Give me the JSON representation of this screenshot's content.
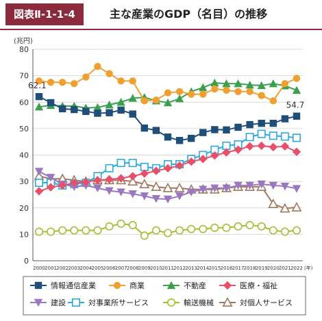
{
  "header": {
    "figure_number": "図表Ⅱ-1-1-4",
    "title": "主な産業のGDP（名目）の推移"
  },
  "colors": {
    "header_accent": "#8a2a3c"
  },
  "chart_data": {
    "type": "line",
    "yunit": "(兆円)",
    "xunit": "(年)",
    "ylim": [
      0,
      80
    ],
    "yticks": [
      0,
      10,
      20,
      30,
      40,
      50,
      60,
      70,
      80
    ],
    "x": [
      "2000",
      "2001",
      "2002",
      "2003",
      "2004",
      "2005",
      "2006",
      "2007",
      "2008",
      "2009",
      "2010",
      "2011",
      "2012",
      "2013",
      "2014",
      "2015",
      "2016",
      "2017",
      "2018",
      "2019",
      "2020",
      "2021",
      "2022"
    ],
    "grid": true,
    "legend_position": "bottom",
    "annotations": [
      {
        "text": "62.1",
        "series": 0,
        "index": 0
      },
      {
        "text": "54.7",
        "series": 0,
        "index": 22
      }
    ],
    "series": [
      {
        "name": "情報通信産業",
        "color": "#1f4e79",
        "marker": "square-filled",
        "values": [
          62.1,
          59.8,
          57.5,
          57.2,
          56.5,
          55.8,
          56.0,
          57.0,
          55.5,
          50.2,
          49.3,
          46.8,
          45.5,
          46.3,
          48.5,
          49.6,
          49.5,
          50.5,
          51.5,
          52.0,
          52.0,
          53.7,
          54.7
        ]
      },
      {
        "name": "商業",
        "color": "#f0a030",
        "marker": "circle-filled",
        "values": [
          68.0,
          67.5,
          67.5,
          67.0,
          69.5,
          73.5,
          70.8,
          68.0,
          68.0,
          60.5,
          60.8,
          63.5,
          64.0,
          63.0,
          63.0,
          65.0,
          64.5,
          64.0,
          64.0,
          62.5,
          60.5,
          67.0,
          69.0
        ]
      },
      {
        "name": "不動産",
        "color": "#3aa050",
        "marker": "triangle-up-filled",
        "values": [
          58.2,
          58.8,
          58.5,
          58.5,
          57.8,
          58.0,
          59.0,
          60.0,
          61.5,
          61.8,
          60.5,
          59.8,
          61.3,
          64.0,
          65.5,
          67.3,
          67.0,
          67.0,
          66.5,
          66.3,
          67.0,
          66.2,
          64.5
        ]
      },
      {
        "name": "医療・福祉",
        "color": "#e8506a",
        "marker": "diamond-filled",
        "values": [
          26.3,
          27.8,
          28.5,
          29.5,
          29.8,
          30.5,
          30.8,
          31.2,
          32.0,
          33.0,
          34.0,
          35.0,
          36.0,
          37.5,
          38.5,
          39.8,
          41.0,
          42.0,
          43.3,
          43.5,
          43.0,
          43.3,
          41.2
        ]
      },
      {
        "name": "建設",
        "color": "#9a77c0",
        "marker": "triangle-down-filled",
        "values": [
          33.8,
          31.5,
          29.0,
          28.0,
          28.5,
          27.5,
          26.5,
          26.0,
          25.3,
          24.5,
          23.5,
          23.3,
          24.5,
          26.0,
          27.0,
          27.5,
          27.5,
          28.5,
          28.5,
          29.0,
          28.5,
          28.2,
          27.3
        ]
      },
      {
        "name": "対事業所サービス",
        "color": "#2aa8e0",
        "marker": "square-open",
        "values": [
          29.5,
          29.5,
          28.5,
          29.0,
          29.5,
          32.0,
          35.0,
          37.0,
          37.0,
          35.5,
          35.0,
          36.5,
          36.5,
          38.5,
          40.0,
          42.0,
          43.5,
          44.0,
          46.8,
          48.0,
          47.3,
          47.0,
          46.5
        ]
      },
      {
        "name": "輸送機械",
        "color": "#a0c030",
        "marker": "circle-open",
        "values": [
          11.0,
          11.0,
          11.5,
          11.5,
          11.5,
          11.5,
          13.0,
          14.0,
          13.5,
          9.5,
          11.5,
          10.5,
          11.5,
          12.0,
          12.0,
          12.5,
          12.5,
          13.0,
          13.5,
          13.0,
          11.5,
          11.0,
          11.5
        ]
      },
      {
        "name": "対個人サービス",
        "color": "#a07860",
        "marker": "triangle-up-open",
        "values": [
          32.0,
          31.0,
          31.0,
          30.5,
          30.0,
          30.5,
          30.5,
          30.5,
          30.0,
          29.0,
          28.0,
          27.5,
          27.5,
          27.0,
          27.0,
          27.0,
          27.5,
          28.0,
          28.0,
          28.0,
          21.5,
          19.8,
          20.2
        ]
      }
    ]
  }
}
